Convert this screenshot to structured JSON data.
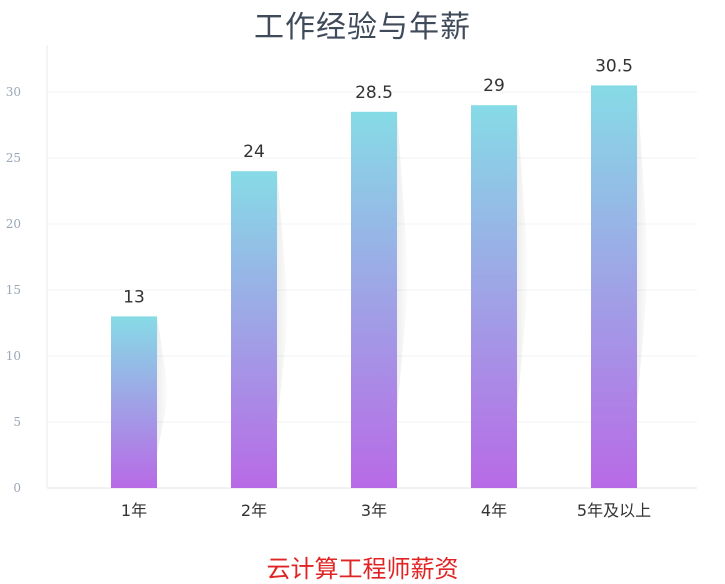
{
  "chart_data": {
    "type": "bar",
    "title": "工作经验与年薪",
    "categories": [
      "1年",
      "2年",
      "3年",
      "4年",
      "5年及以上"
    ],
    "values": [
      13,
      24,
      28.5,
      29,
      30.5
    ],
    "data_labels": [
      "13",
      "24",
      "28.5",
      "29",
      "30.5"
    ],
    "yticks": [
      0,
      5,
      10,
      15,
      20,
      25,
      30
    ],
    "ylim": [
      0,
      34
    ],
    "grid": true,
    "bar_gradient": {
      "top": "#86dbe6",
      "bottom": "#b86ae6"
    }
  },
  "footer": {
    "caption": "云计算工程师薪资"
  }
}
